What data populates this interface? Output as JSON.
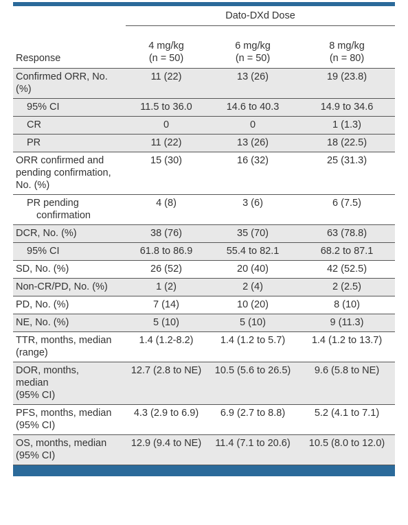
{
  "table": {
    "group_header": "Dato-DXd Dose",
    "row_header": "Response",
    "columns": [
      {
        "dose": "4 mg/kg",
        "n": "(n = 50)"
      },
      {
        "dose": "6 mg/kg",
        "n": "(n = 50)"
      },
      {
        "dose": "8 mg/kg",
        "n": "(n = 80)"
      }
    ],
    "rows": [
      {
        "label": "Confirmed ORR, No. (%)",
        "values": [
          "11 (22)",
          "13 (26)",
          "19 (23.8)"
        ]
      },
      {
        "label": "95% CI",
        "values": [
          "11.5 to 36.0",
          "14.6 to 40.3",
          "14.9 to 34.6"
        ]
      },
      {
        "label": "CR",
        "values": [
          "0",
          "0",
          "1 (1.3)"
        ]
      },
      {
        "label": "PR",
        "values": [
          "11 (22)",
          "13 (26)",
          "18 (22.5)"
        ]
      },
      {
        "label": "ORR confirmed and pending confirmation, No. (%)",
        "values": [
          "15 (30)",
          "16 (32)",
          "25 (31.3)"
        ]
      },
      {
        "label_line1": "PR pending",
        "label_line2": "confirmation",
        "values": [
          "4 (8)",
          "3 (6)",
          "6 (7.5)"
        ]
      },
      {
        "label": "DCR, No. (%)",
        "values": [
          "38 (76)",
          "35 (70)",
          "63 (78.8)"
        ]
      },
      {
        "label": "95% CI",
        "values": [
          "61.8 to 86.9",
          "55.4 to 82.1",
          "68.2 to 87.1"
        ]
      },
      {
        "label": "SD, No. (%)",
        "values": [
          "26 (52)",
          "20 (40)",
          "42 (52.5)"
        ]
      },
      {
        "label": "Non-CR/PD, No. (%)",
        "values": [
          "1 (2)",
          "2 (4)",
          "2 (2.5)"
        ]
      },
      {
        "label": "PD, No. (%)",
        "values": [
          "7 (14)",
          "10 (20)",
          "8 (10)"
        ]
      },
      {
        "label": "NE, No. (%)",
        "values": [
          "5 (10)",
          "5 (10)",
          "9 (11.3)"
        ]
      },
      {
        "label": "TTR, months, median (range)",
        "values": [
          "1.4 (1.2-8.2)",
          "1.4 (1.2 to 5.7)",
          "1.4 (1.2 to 13.7)"
        ]
      },
      {
        "label_line1": "DOR, months,",
        "label_line2": "median",
        "label_line3": "(95% CI)",
        "values": [
          "12.7 (2.8 to NE)",
          "10.5 (5.6 to 26.5)",
          "9.6 (5.8 to NE)"
        ]
      },
      {
        "label_line1": "PFS, months, median",
        "label_line2": "(95% CI)",
        "values": [
          "4.3 (2.9 to 6.9)",
          "6.9 (2.7 to 8.8)",
          "5.2 (4.1 to 7.1)"
        ]
      },
      {
        "label_line1": "OS, months, median",
        "label_line2": "(95% CI)",
        "values": [
          "12.9 (9.4 to NE)",
          "11.4 (7.1 to 20.6)",
          "10.5 (8.0 to 12.0)"
        ]
      }
    ]
  },
  "colors": {
    "accent_bar": "#2b6a9a",
    "row_shade": "#e8e8e8"
  }
}
